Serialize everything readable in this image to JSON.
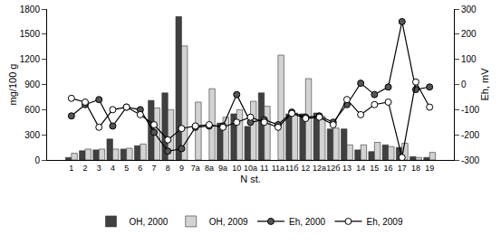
{
  "chart_data": {
    "type": "bar",
    "x_label": "N st.",
    "y_label": "mg/100 g",
    "y2_label": "Eh, mV",
    "categories": [
      "1",
      "2",
      "3",
      "4",
      "5",
      "6",
      "7",
      "8",
      "9",
      "7a",
      "8a",
      "9a",
      "10",
      "10a",
      "11",
      "11a",
      "11б",
      "12",
      "12a",
      "12б",
      "13",
      "14",
      "15",
      "16",
      "17",
      "18",
      "19"
    ],
    "series": [
      {
        "name": "OH, 2000",
        "type": "bar",
        "color": "#404040",
        "values": [
          30,
          110,
          120,
          250,
          130,
          170,
          710,
          800,
          1710,
          null,
          null,
          440,
          550,
          400,
          800,
          null,
          550,
          550,
          560,
          370,
          370,
          120,
          100,
          180,
          150,
          40,
          30
        ]
      },
      {
        "name": "OH, 2009",
        "type": "bar",
        "color": "#d3d3d3",
        "values": [
          80,
          130,
          130,
          130,
          140,
          190,
          620,
          600,
          1360,
          690,
          850,
          510,
          600,
          700,
          640,
          1250,
          560,
          970,
          520,
          380,
          180,
          180,
          210,
          160,
          200,
          30,
          90
        ]
      },
      {
        "name": "Eh, 2000",
        "type": "line",
        "axis": "y2",
        "color": "#000000",
        "marker": "filled",
        "values": [
          -125,
          -80,
          -60,
          -165,
          -90,
          -100,
          -190,
          -265,
          -255,
          -170,
          -165,
          -165,
          -40,
          -150,
          -140,
          -160,
          -110,
          -130,
          -125,
          -150,
          -80,
          5,
          -40,
          -10,
          250,
          -20,
          -10
        ]
      },
      {
        "name": "Eh, 2009",
        "type": "line",
        "axis": "y2",
        "color": "#000000",
        "marker": "open",
        "values": [
          -55,
          -70,
          -170,
          -100,
          -90,
          -120,
          -160,
          -220,
          -175,
          -165,
          -160,
          -170,
          -150,
          -130,
          -150,
          -170,
          -115,
          -135,
          -130,
          -160,
          -60,
          -120,
          -80,
          -70,
          -290,
          10,
          -90
        ]
      }
    ],
    "ylim": [
      0,
      1800
    ],
    "yticks": [
      0,
      300,
      600,
      900,
      1200,
      1500,
      1800
    ],
    "y2lim": [
      -300,
      300
    ],
    "y2ticks": [
      -300,
      -200,
      -100,
      0,
      100,
      200,
      300
    ],
    "grid": false,
    "legend": "bottom"
  }
}
